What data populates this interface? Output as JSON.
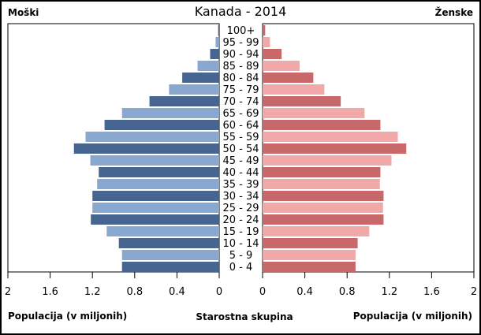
{
  "chart_data": {
    "type": "bar",
    "orientation": "horizontal-pyramid",
    "title": "Kanada - 2014",
    "left_label": "Moški",
    "right_label": "Ženske",
    "xlabel_left": "Populacija (v miljonih)",
    "xlabel_right": "Populacija (v miljonih)",
    "center_label": "Starostna skupina",
    "xlim": [
      0,
      2
    ],
    "ticks": [
      "0",
      "0.4",
      "0.8",
      "1.2",
      "1.6",
      "2"
    ],
    "tick_values": [
      0,
      0.4,
      0.8,
      1.2,
      1.6,
      2
    ],
    "grid": false,
    "categories": [
      "100+",
      "95 - 99",
      "90 - 94",
      "85 - 89",
      "80 - 84",
      "75 - 79",
      "70 - 74",
      "65 - 69",
      "60 - 64",
      "55 - 59",
      "50 - 54",
      "45 - 49",
      "40 - 44",
      "35 - 39",
      "30 - 34",
      "25 - 29",
      "20 - 24",
      "15 - 19",
      "10 - 14",
      "5 - 9",
      "0 - 4"
    ],
    "series": [
      {
        "name": "Moški",
        "values": [
          0.01,
          0.034,
          0.086,
          0.205,
          0.35,
          0.475,
          0.66,
          0.92,
          1.085,
          1.265,
          1.375,
          1.22,
          1.14,
          1.155,
          1.2,
          1.2,
          1.215,
          1.065,
          0.95,
          0.92,
          0.92
        ],
        "colors": [
          "#466590",
          "#88a8cf"
        ]
      },
      {
        "name": "Ženske",
        "values": [
          0.025,
          0.07,
          0.18,
          0.35,
          0.48,
          0.585,
          0.74,
          0.965,
          1.115,
          1.28,
          1.36,
          1.22,
          1.115,
          1.11,
          1.145,
          1.14,
          1.145,
          1.01,
          0.9,
          0.88,
          0.88
        ],
        "colors": [
          "#c8686a",
          "#f0a8a8"
        ]
      }
    ]
  }
}
